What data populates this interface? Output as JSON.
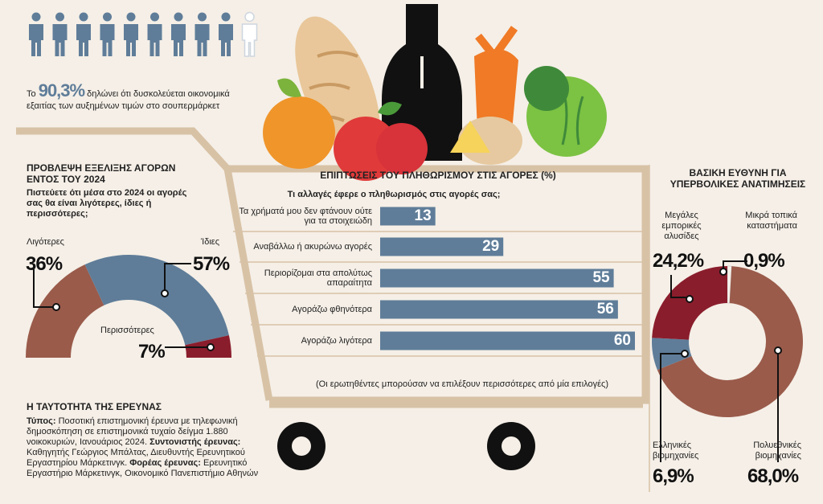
{
  "header": {
    "prefix": "Το",
    "highlight": "90,3%",
    "text": "δηλώνει ότι δυσκολεύεται οικονομικά εξαιτίας των αυξημένων τιμών στο σουπερμάρκετ"
  },
  "chart_data": [
    {
      "type": "semidonut",
      "title": "ΠΡΟΒΛΕΨΗ ΕΞΕΛΙΞΗΣ ΑΓΟΡΩΝ ΕΝΤΟΣ ΤΟΥ 2024",
      "subtitle": "Πιστεύετε ότι μέσα στο 2024 οι αγορές σας θα είναι λιγότερες, ίδιες ή περισσότερες;",
      "categories": [
        "Λιγότερες",
        "Ίδιες",
        "Περισσότερες"
      ],
      "values": [
        36,
        57,
        7
      ],
      "value_labels": [
        "36%",
        "57%",
        "7%"
      ],
      "colors": [
        "#9a5b4b",
        "#5f7d99",
        "#8a1d2c"
      ]
    },
    {
      "type": "bar",
      "orientation": "horizontal",
      "title": "ΕΠΙΠΤΩΣΕΙΣ ΤΟΥ ΠΛΗΘΩΡΙΣΜΟΥ ΣΤΙΣ ΑΓΟΡΕΣ (%)",
      "subtitle": "Τι αλλαγές έφερε ο πληθωρισμός στις αγορές σας;",
      "categories": [
        "Τα χρήματά μου δεν φτάνουν ούτε για τα στοιχειώδη",
        "Αναβάλλω ή ακυρώνω αγορές",
        "Περιορίζομαι στα απολύτως απαραίτητα",
        "Αγοράζω φθηνότερα",
        "Αγοράζω λιγότερα"
      ],
      "values": [
        13,
        29,
        55,
        56,
        60
      ],
      "color": "#5f7d99",
      "xlim": [
        0,
        60
      ],
      "note": "(Οι ερωτηθέντες μπορούσαν να επιλέξουν περισσότερες από μία επιλογές)"
    },
    {
      "type": "donut",
      "title": "ΒΑΣΙΚΗ ΕΥΘΥΝΗ ΓΙΑ ΥΠΕΡΒΟΛΙΚΕΣ ΑΝΑΤΙΜΗΣΕΙΣ",
      "categories": [
        "Μικρά τοπικά καταστήματα",
        "Πολυεθνικές βιομηχανίες",
        "Ελληνικές βιομηχανίες",
        "Μεγάλες εμπορικές αλυσίδες"
      ],
      "values": [
        0.9,
        68.0,
        6.9,
        24.2
      ],
      "value_labels": [
        "0,9%",
        "68,0%",
        "6,9%",
        "24,2%"
      ],
      "colors": [
        "#f4f0ea",
        "#9a5b4b",
        "#5f7d99",
        "#8a1d2c"
      ]
    }
  ],
  "survey": {
    "title": "Η ΤΑΥΤΟΤΗΤΑ ΤΗΣ ΕΡΕΥΝΑΣ",
    "items": [
      {
        "label": "Τύπος:",
        "text": "Ποσοτική επιστημονική έρευνα με τηλεφωνική δημοσκόπηση σε επιστημονικά τυχαίο δείγμα 1.880 νοικοκυριών, Ιανουάριος 2024."
      },
      {
        "label": "Συντονιστής έρευνας:",
        "text": "Καθηγητής Γεώργιος Μπάλτας, Διευθυντής Ερευνητικού Εργαστηρίου Μάρκετινγκ."
      },
      {
        "label": "Φορέας έρευνας:",
        "text": "Ερευνητικό Εργαστήριο Μάρκετινγκ, Οικονομικό Πανεπιστήμιο Αθηνών"
      }
    ]
  }
}
